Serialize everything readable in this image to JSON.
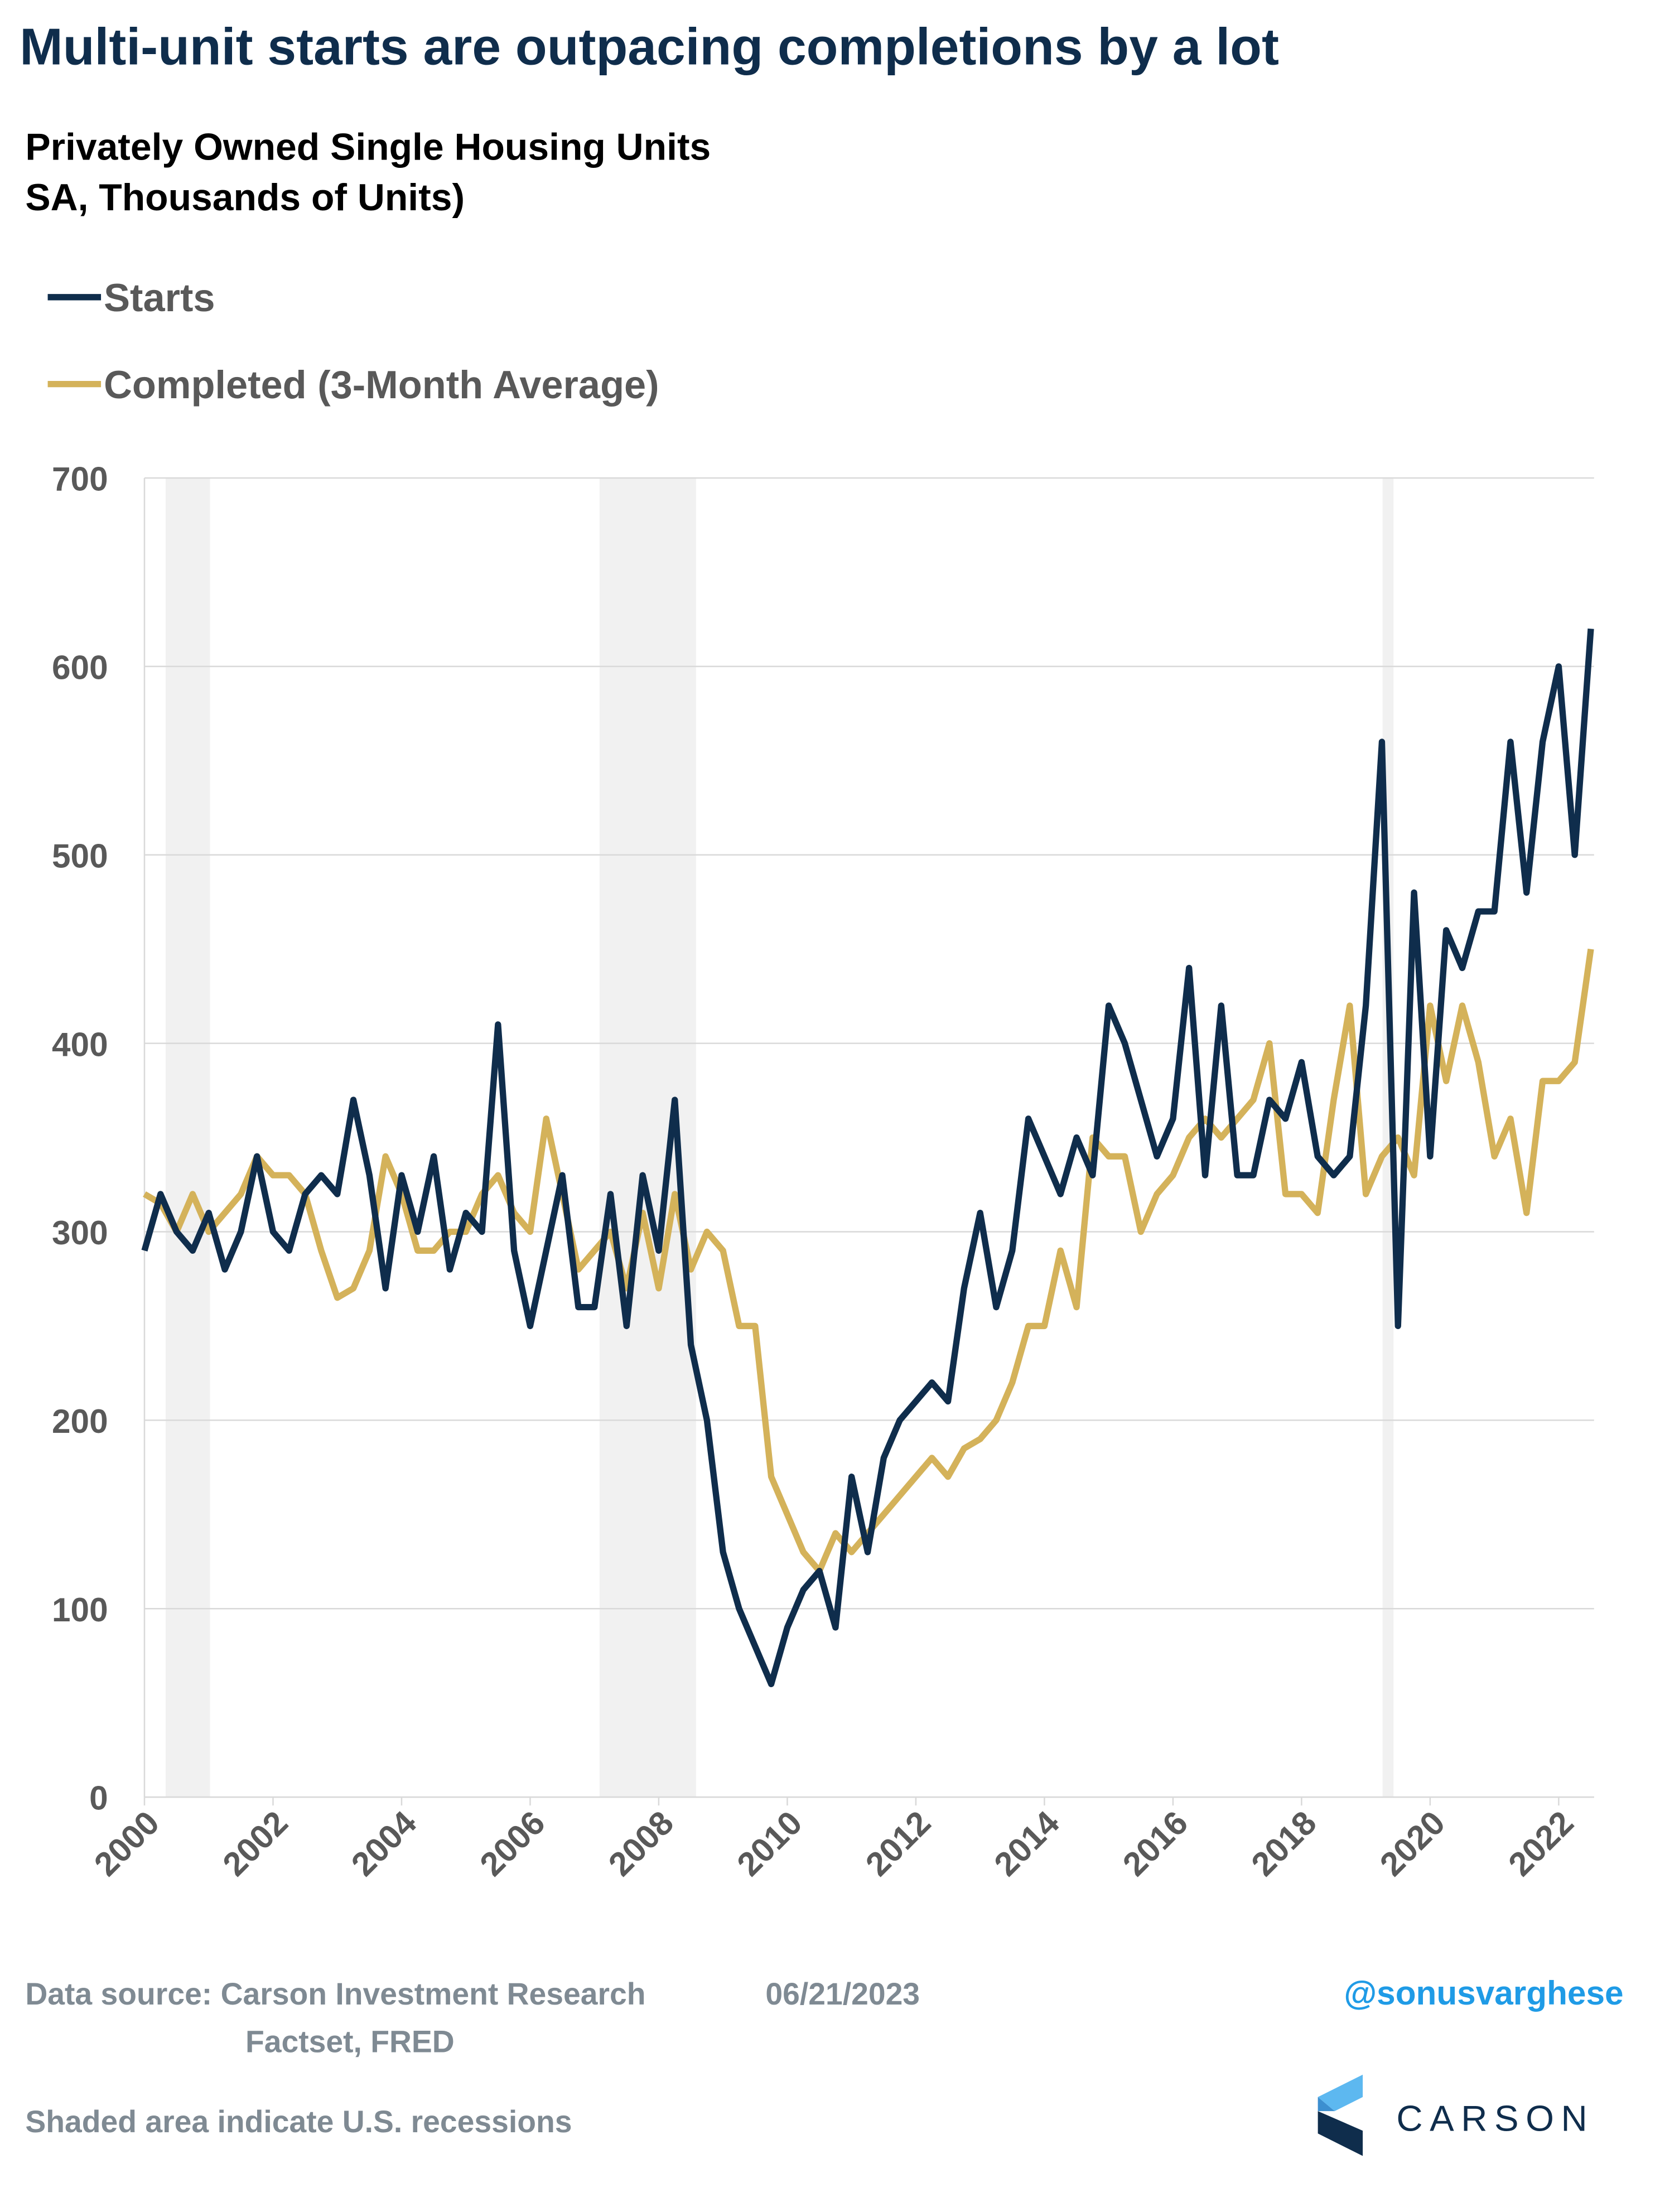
{
  "chart_data": {
    "type": "line",
    "title": "Multi-unit starts are outpacing completions by a lot",
    "subtitle": [
      "Privately Owned Single Housing Units",
      "SA, Thousands of Units)"
    ],
    "source": [
      "Data source: Carson Investment Research",
      "06/21/2023",
      "Factset, FRED"
    ],
    "note": "Shaded area indicate U.S. recessions",
    "handle": "@sonusvarghese",
    "brand": "CARSON",
    "xlim": [
      2000,
      2022.55
    ],
    "xticks": [
      2000,
      2002,
      2004,
      2006,
      2008,
      2010,
      2012,
      2014,
      2016,
      2018,
      2020,
      2022
    ],
    "ylim": [
      0,
      700
    ],
    "yticks": [
      0,
      100,
      200,
      300,
      400,
      500,
      600,
      700
    ],
    "grid": true,
    "legend": "top-left",
    "recessions": [
      [
        2000.33,
        2001.02
      ],
      [
        2007.08,
        2008.58
      ],
      [
        2019.26,
        2019.43
      ]
    ],
    "x": [
      2000,
      2000.25,
      2000.5,
      2000.75,
      2001,
      2001.25,
      2001.5,
      2001.75,
      2002,
      2002.25,
      2002.5,
      2002.75,
      2003,
      2003.25,
      2003.5,
      2003.75,
      2004,
      2004.25,
      2004.5,
      2004.75,
      2005,
      2005.25,
      2005.5,
      2005.75,
      2006,
      2006.25,
      2006.5,
      2006.75,
      2007,
      2007.25,
      2007.5,
      2007.75,
      2008,
      2008.25,
      2008.5,
      2008.75,
      2009,
      2009.25,
      2009.5,
      2009.75,
      2010,
      2010.25,
      2010.5,
      2010.75,
      2011,
      2011.25,
      2011.5,
      2011.75,
      2012,
      2012.25,
      2012.5,
      2012.75,
      2013,
      2013.25,
      2013.5,
      2013.75,
      2014,
      2014.25,
      2014.5,
      2014.75,
      2015,
      2015.25,
      2015.5,
      2015.75,
      2016,
      2016.25,
      2016.5,
      2016.75,
      2017,
      2017.25,
      2017.5,
      2017.75,
      2018,
      2018.25,
      2018.5,
      2018.75,
      2019,
      2019.25,
      2019.5,
      2019.75,
      2020,
      2020.25,
      2020.5,
      2020.75,
      2021,
      2021.25,
      2021.5,
      2021.75,
      2022,
      2022.25,
      2022.5
    ],
    "series": [
      {
        "name": "Starts",
        "color": "#0f2d4c",
        "values": [
          290,
          320,
          300,
          290,
          310,
          280,
          300,
          340,
          300,
          290,
          320,
          330,
          320,
          370,
          330,
          270,
          330,
          300,
          340,
          280,
          310,
          300,
          410,
          290,
          250,
          290,
          330,
          260,
          260,
          320,
          250,
          330,
          290,
          370,
          240,
          200,
          130,
          100,
          80,
          60,
          90,
          110,
          120,
          90,
          170,
          130,
          180,
          200,
          210,
          220,
          210,
          270,
          310,
          260,
          290,
          360,
          340,
          320,
          350,
          330,
          420,
          400,
          370,
          340,
          360,
          440,
          330,
          420,
          330,
          330,
          370,
          360,
          390,
          340,
          330,
          340,
          420,
          560,
          250,
          480,
          340,
          460,
          440,
          470,
          470,
          560,
          480,
          560,
          600,
          500,
          620
        ]
      },
      {
        "name": "Completed (3-Month Average)",
        "color": "#d4b25a",
        "values": [
          320,
          315,
          300,
          320,
          300,
          310,
          320,
          340,
          330,
          330,
          320,
          290,
          265,
          270,
          290,
          340,
          320,
          290,
          290,
          300,
          300,
          320,
          330,
          310,
          300,
          360,
          320,
          280,
          290,
          300,
          270,
          310,
          270,
          320,
          280,
          300,
          290,
          250,
          250,
          170,
          150,
          130,
          120,
          140,
          130,
          140,
          150,
          160,
          170,
          180,
          170,
          185,
          190,
          200,
          220,
          250,
          250,
          290,
          260,
          350,
          340,
          340,
          300,
          320,
          330,
          350,
          360,
          350,
          360,
          370,
          400,
          320,
          320,
          310,
          370,
          420,
          320,
          340,
          350,
          330,
          420,
          380,
          420,
          390,
          340,
          360,
          310,
          380,
          380,
          390,
          450
        ]
      }
    ]
  }
}
